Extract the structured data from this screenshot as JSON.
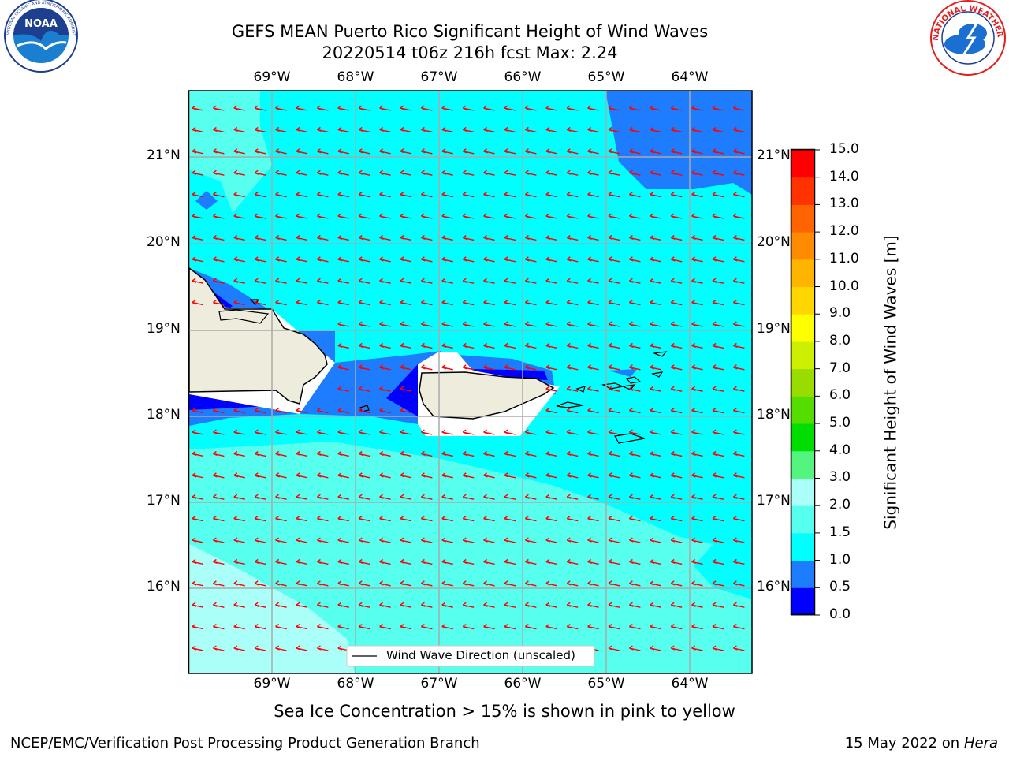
{
  "title": {
    "line1": "GEFS MEAN Puerto Rico Significant Height of Wind Waves",
    "line2": "20220514 t06z 216h fcst   Max: 2.24"
  },
  "map": {
    "lon_labels": [
      "69°W",
      "68°W",
      "67°W",
      "66°W",
      "65°W",
      "64°W"
    ],
    "lat_labels": [
      "21°N",
      "20°N",
      "19°N",
      "18°N",
      "17°N",
      "16°N"
    ],
    "legend_label": "Wind Wave Direction (unscaled)",
    "arrow_color": "#ff0000",
    "land_color": "#eeecdc"
  },
  "colorbar": {
    "label": "Significant Height of Wind Waves [m]",
    "ticks": [
      "0.0",
      "0.5",
      "1.0",
      "1.5",
      "2.0",
      "3.0",
      "4.0",
      "5.0",
      "6.0",
      "7.0",
      "8.0",
      "9.0",
      "10.0",
      "11.0",
      "12.0",
      "13.0",
      "14.0",
      "15.0"
    ],
    "colors": [
      "#0000ff",
      "#1e7cff",
      "#00ffff",
      "#56ffee",
      "#aafff8",
      "#54f57e",
      "#00dd00",
      "#55dd00",
      "#99dd00",
      "#ccf000",
      "#ffff00",
      "#ffd700",
      "#ffb400",
      "#ff8c00",
      "#ff6400",
      "#ff3200",
      "#ff0000"
    ]
  },
  "subtitle": "Sea Ice Concentration > 15% is shown in pink to yellow",
  "footer": {
    "left": "NCEP/EMC/Verification Post Processing Product Generation Branch",
    "date": "15 May 2022 on",
    "machine": "Hera"
  },
  "logos": {
    "noaa": "NOAA",
    "noaa_ring": "NATIONAL OCEANIC AND ATMOSPHERIC ADMINISTRATION · U.S. DEPARTMENT OF COMMERCE",
    "nws_ring": "NATIONAL WEATHER SERVICE"
  }
}
